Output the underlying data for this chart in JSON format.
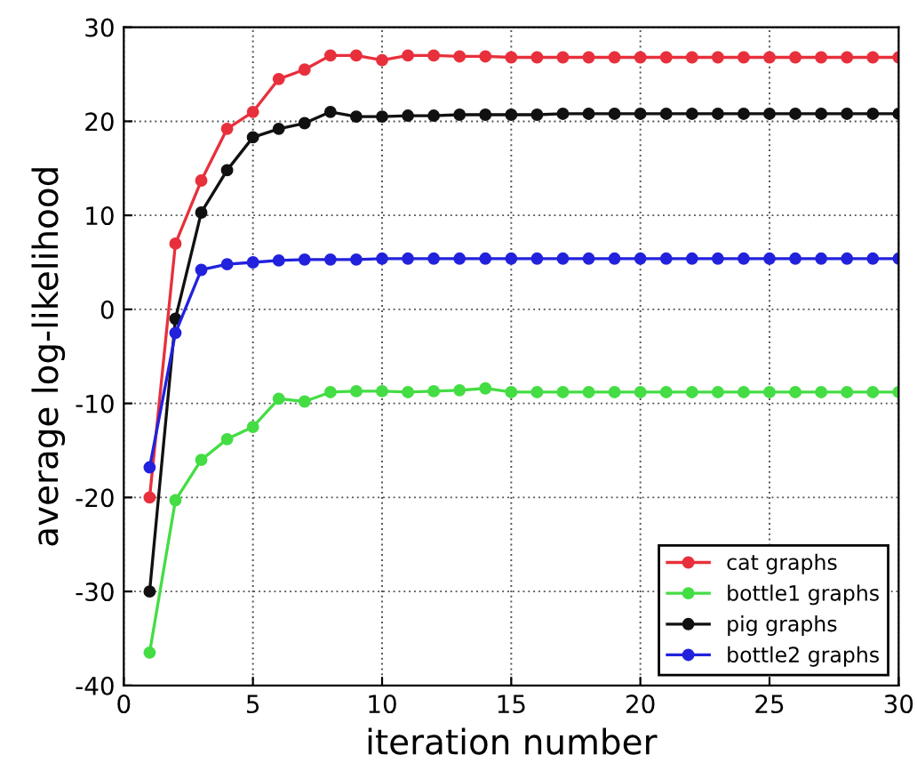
{
  "chart_data": {
    "type": "line",
    "xlabel": "iteration number",
    "ylabel": "average log-likelihood",
    "x": [
      1,
      2,
      3,
      4,
      5,
      6,
      7,
      8,
      9,
      10,
      11,
      12,
      13,
      14,
      15,
      16,
      17,
      18,
      19,
      20,
      21,
      22,
      23,
      24,
      25,
      26,
      27,
      28,
      29,
      30
    ],
    "series": [
      {
        "name": "cat graphs",
        "color": "#e8303c",
        "values": [
          -20,
          7,
          13.7,
          19.2,
          21,
          24.5,
          25.5,
          27,
          27,
          26.5,
          27,
          27,
          26.9,
          26.9,
          26.8,
          26.8,
          26.8,
          26.8,
          26.8,
          26.8,
          26.8,
          26.8,
          26.8,
          26.8,
          26.8,
          26.8,
          26.8,
          26.8,
          26.8,
          26.8
        ]
      },
      {
        "name": "bottle1 graphs",
        "color": "#44dd44",
        "values": [
          -36.5,
          -20.3,
          -16,
          -13.8,
          -12.5,
          -9.5,
          -9.8,
          -8.8,
          -8.7,
          -8.7,
          -8.8,
          -8.7,
          -8.6,
          -8.4,
          -8.8,
          -8.8,
          -8.8,
          -8.8,
          -8.8,
          -8.8,
          -8.8,
          -8.8,
          -8.8,
          -8.8,
          -8.8,
          -8.8,
          -8.8,
          -8.8,
          -8.8,
          -8.8
        ]
      },
      {
        "name": "pig graphs",
        "color": "#111111",
        "values": [
          -30,
          -1,
          10.3,
          14.8,
          18.3,
          19.2,
          19.8,
          21,
          20.5,
          20.5,
          20.6,
          20.6,
          20.7,
          20.7,
          20.7,
          20.7,
          20.8,
          20.8,
          20.8,
          20.8,
          20.8,
          20.8,
          20.8,
          20.8,
          20.8,
          20.8,
          20.8,
          20.8,
          20.8,
          20.8
        ]
      },
      {
        "name": "bottle2 graphs",
        "color": "#2222dd",
        "values": [
          -16.8,
          -2.5,
          4.2,
          4.8,
          5,
          5.2,
          5.3,
          5.3,
          5.3,
          5.4,
          5.4,
          5.4,
          5.4,
          5.4,
          5.4,
          5.4,
          5.4,
          5.4,
          5.4,
          5.4,
          5.4,
          5.4,
          5.4,
          5.4,
          5.4,
          5.4,
          5.4,
          5.4,
          5.4,
          5.4
        ]
      }
    ],
    "xlim": [
      0,
      30
    ],
    "xticks": [
      0,
      5,
      10,
      15,
      20,
      25,
      30
    ],
    "ylim": [
      -40,
      30
    ],
    "yticks": [
      -40,
      -30,
      -20,
      -10,
      0,
      10,
      20,
      30
    ],
    "grid": true,
    "legend": "bottom right",
    "marker": "circle",
    "line_style": "solid"
  }
}
